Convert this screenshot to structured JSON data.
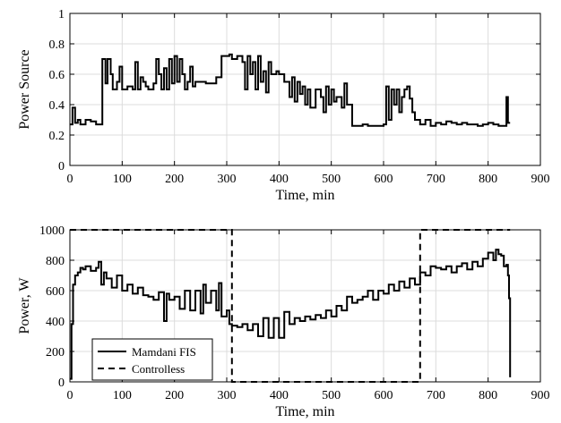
{
  "chart_data": [
    {
      "type": "line",
      "title": "",
      "xlabel": "Time, min",
      "ylabel": "Power Source",
      "xlim": [
        0,
        900
      ],
      "ylim": [
        0,
        1
      ],
      "xticks": [
        "0",
        "100",
        "200",
        "300",
        "400",
        "500",
        "600",
        "700",
        "800",
        "900"
      ],
      "yticks": [
        "0",
        "0.2",
        "0.4",
        "0.6",
        "0.8",
        "1"
      ],
      "grid": true,
      "series": [
        {
          "name": "",
          "color": "#000000",
          "style": "solid",
          "step": true,
          "x": [
            0,
            5,
            10,
            15,
            20,
            30,
            40,
            50,
            58,
            62,
            68,
            72,
            78,
            82,
            90,
            95,
            100,
            110,
            120,
            125,
            130,
            135,
            140,
            145,
            150,
            160,
            165,
            170,
            175,
            180,
            185,
            190,
            195,
            200,
            205,
            210,
            215,
            220,
            225,
            230,
            235,
            240,
            250,
            260,
            270,
            280,
            290,
            298,
            305,
            310,
            320,
            330,
            335,
            340,
            345,
            350,
            355,
            360,
            365,
            370,
            375,
            380,
            385,
            390,
            395,
            400,
            410,
            420,
            425,
            430,
            435,
            440,
            445,
            450,
            455,
            460,
            470,
            480,
            485,
            490,
            495,
            500,
            505,
            510,
            520,
            525,
            530,
            540,
            550,
            560,
            570,
            580,
            590,
            600,
            605,
            610,
            615,
            620,
            625,
            630,
            635,
            640,
            645,
            650,
            655,
            660,
            670,
            680,
            690,
            700,
            710,
            720,
            730,
            740,
            750,
            760,
            770,
            780,
            790,
            800,
            810,
            820,
            830,
            835,
            838,
            842
          ],
          "y": [
            0.27,
            0.38,
            0.28,
            0.3,
            0.27,
            0.3,
            0.29,
            0.27,
            0.27,
            0.7,
            0.54,
            0.7,
            0.6,
            0.5,
            0.55,
            0.65,
            0.5,
            0.52,
            0.5,
            0.68,
            0.5,
            0.58,
            0.55,
            0.52,
            0.5,
            0.54,
            0.7,
            0.6,
            0.5,
            0.64,
            0.5,
            0.7,
            0.54,
            0.72,
            0.55,
            0.7,
            0.6,
            0.5,
            0.55,
            0.65,
            0.52,
            0.55,
            0.55,
            0.54,
            0.54,
            0.58,
            0.72,
            0.72,
            0.73,
            0.7,
            0.72,
            0.68,
            0.5,
            0.72,
            0.6,
            0.68,
            0.5,
            0.72,
            0.55,
            0.62,
            0.48,
            0.68,
            0.6,
            0.6,
            0.62,
            0.6,
            0.55,
            0.45,
            0.58,
            0.42,
            0.55,
            0.47,
            0.52,
            0.4,
            0.5,
            0.38,
            0.5,
            0.45,
            0.35,
            0.52,
            0.4,
            0.5,
            0.42,
            0.45,
            0.38,
            0.54,
            0.4,
            0.26,
            0.26,
            0.27,
            0.26,
            0.26,
            0.26,
            0.27,
            0.52,
            0.3,
            0.5,
            0.4,
            0.5,
            0.35,
            0.45,
            0.5,
            0.52,
            0.44,
            0.35,
            0.3,
            0.27,
            0.3,
            0.26,
            0.28,
            0.27,
            0.29,
            0.28,
            0.27,
            0.28,
            0.27,
            0.27,
            0.26,
            0.27,
            0.28,
            0.27,
            0.26,
            0.26,
            0.45,
            0.28,
            0.28
          ]
        }
      ]
    },
    {
      "type": "line",
      "title": "",
      "xlabel": "Time, min",
      "ylabel": "Power, W",
      "xlim": [
        0,
        900
      ],
      "ylim": [
        0,
        1000
      ],
      "xticks": [
        "0",
        "100",
        "200",
        "300",
        "400",
        "500",
        "600",
        "700",
        "800",
        "900"
      ],
      "yticks": [
        "0",
        "200",
        "400",
        "600",
        "800",
        "1000"
      ],
      "grid": true,
      "legend_position": "bottom-left",
      "series": [
        {
          "name": "Mamdani FIS",
          "color": "#000000",
          "style": "solid",
          "step": true,
          "x": [
            0,
            3,
            6,
            10,
            15,
            20,
            25,
            30,
            40,
            50,
            55,
            60,
            65,
            70,
            80,
            90,
            100,
            110,
            120,
            130,
            140,
            150,
            160,
            170,
            180,
            185,
            190,
            200,
            210,
            220,
            230,
            240,
            250,
            255,
            260,
            270,
            280,
            285,
            290,
            300,
            305,
            310,
            320,
            330,
            340,
            350,
            360,
            370,
            380,
            390,
            400,
            410,
            420,
            430,
            440,
            450,
            460,
            470,
            480,
            490,
            500,
            510,
            520,
            530,
            540,
            550,
            560,
            570,
            580,
            590,
            600,
            610,
            620,
            630,
            640,
            650,
            660,
            670,
            680,
            690,
            700,
            710,
            720,
            730,
            740,
            750,
            760,
            770,
            780,
            790,
            800,
            810,
            815,
            820,
            825,
            830,
            835,
            838,
            840,
            842
          ],
          "y": [
            20,
            380,
            640,
            700,
            720,
            750,
            740,
            760,
            730,
            750,
            790,
            640,
            720,
            680,
            620,
            700,
            600,
            640,
            580,
            620,
            570,
            560,
            540,
            590,
            400,
            580,
            540,
            560,
            480,
            600,
            470,
            600,
            450,
            640,
            520,
            600,
            470,
            650,
            430,
            470,
            380,
            370,
            360,
            380,
            340,
            380,
            300,
            420,
            290,
            420,
            290,
            460,
            380,
            420,
            400,
            430,
            410,
            440,
            420,
            470,
            430,
            500,
            470,
            560,
            520,
            540,
            560,
            600,
            540,
            600,
            580,
            640,
            600,
            660,
            620,
            680,
            640,
            720,
            700,
            760,
            750,
            740,
            760,
            720,
            760,
            780,
            740,
            790,
            760,
            810,
            850,
            800,
            870,
            840,
            830,
            760,
            770,
            700,
            550,
            30
          ]
        },
        {
          "name": "Controlless",
          "color": "#000000",
          "style": "dashed",
          "step": true,
          "x": [
            0,
            305,
            310,
            665,
            670,
            842
          ],
          "y": [
            1000,
            1000,
            0,
            0,
            1000,
            1000
          ]
        }
      ]
    }
  ]
}
